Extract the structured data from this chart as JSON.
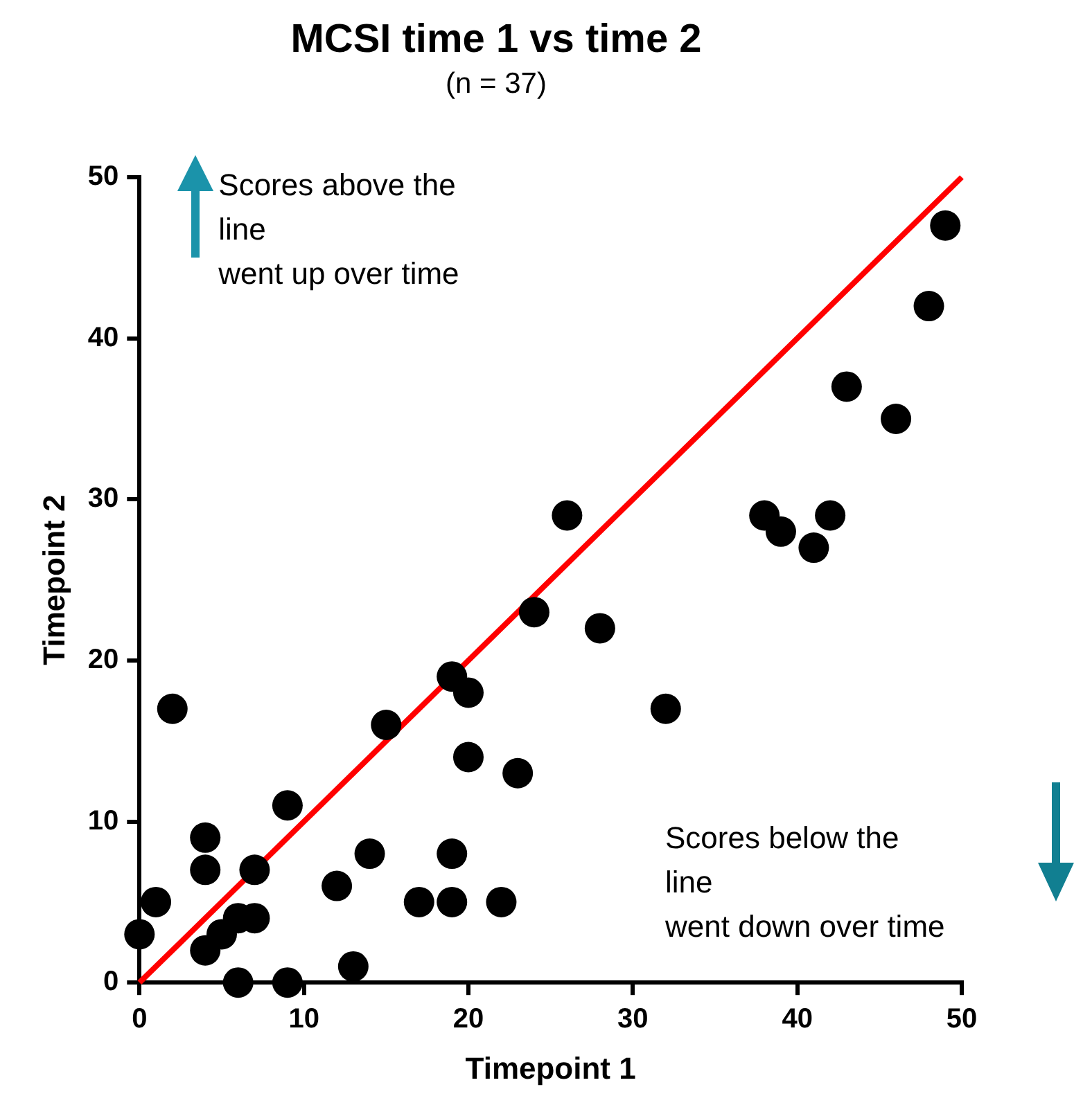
{
  "chart_data": {
    "type": "scatter",
    "title": "MCSI time 1 vs time 2",
    "subtitle": "(n = 37)",
    "xlabel": "Timepoint 1",
    "ylabel": "Timepoint 2",
    "xlim": [
      0,
      50
    ],
    "ylim": [
      0,
      50
    ],
    "xticks": [
      0,
      10,
      20,
      30,
      40,
      50
    ],
    "yticks": [
      0,
      10,
      20,
      30,
      40,
      50
    ],
    "annotations": [
      "Scores above the\nline\nwent up over time",
      "Scores below the\nline\nwent down over time"
    ],
    "series": [
      {
        "color": "#000000",
        "marker": "circle",
        "x": [
          0,
          1,
          2,
          4,
          4,
          4,
          5,
          6,
          6,
          7,
          7,
          9,
          9,
          12,
          13,
          14,
          15,
          17,
          19,
          19,
          19,
          20,
          20,
          22,
          23,
          24,
          26,
          28,
          32,
          38,
          39,
          41,
          42,
          43,
          46,
          48,
          49
        ],
        "values": [
          3,
          5,
          17,
          9,
          7,
          2,
          3,
          4,
          0,
          7,
          4,
          11,
          0,
          6,
          1,
          8,
          16,
          5,
          19,
          8,
          5,
          18,
          14,
          5,
          13,
          23,
          29,
          22,
          17,
          29,
          28,
          27,
          29,
          37,
          35,
          42,
          47
        ]
      },
      {
        "type": "line",
        "color": "#ff0000",
        "marker": "none",
        "line_style": "solid",
        "x": [
          0,
          50
        ],
        "values": [
          0,
          50
        ]
      }
    ]
  }
}
